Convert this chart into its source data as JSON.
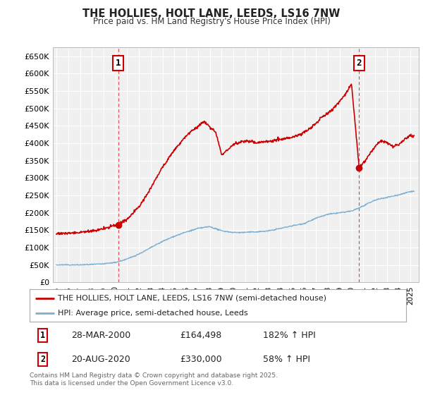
{
  "title": "THE HOLLIES, HOLT LANE, LEEDS, LS16 7NW",
  "subtitle": "Price paid vs. HM Land Registry's House Price Index (HPI)",
  "legend_label_red": "THE HOLLIES, HOLT LANE, LEEDS, LS16 7NW (semi-detached house)",
  "legend_label_blue": "HPI: Average price, semi-detached house, Leeds",
  "annotation1_date": "28-MAR-2000",
  "annotation1_price": "£164,498",
  "annotation1_hpi": "182% ↑ HPI",
  "annotation2_date": "20-AUG-2020",
  "annotation2_price": "£330,000",
  "annotation2_hpi": "58% ↑ HPI",
  "footer": "Contains HM Land Registry data © Crown copyright and database right 2025.\nThis data is licensed under the Open Government Licence v3.0.",
  "ylim": [
    0,
    675000
  ],
  "yticks": [
    0,
    50000,
    100000,
    150000,
    200000,
    250000,
    300000,
    350000,
    400000,
    450000,
    500000,
    550000,
    600000,
    650000
  ],
  "ytick_labels": [
    "£0",
    "£50K",
    "£100K",
    "£150K",
    "£200K",
    "£250K",
    "£300K",
    "£350K",
    "£400K",
    "£450K",
    "£500K",
    "£550K",
    "£600K",
    "£650K"
  ],
  "red_color": "#cc0000",
  "blue_color": "#7bafd4",
  "bg_color": "#ffffff",
  "plot_bg_color": "#f0f0f0",
  "grid_color": "#ffffff",
  "sale1_year": 2000.24,
  "sale2_year": 2020.64,
  "sale1_price": 164498,
  "sale2_price": 330000,
  "hpi_years_key": [
    1995,
    1996,
    1997,
    1998,
    1999,
    2000,
    2001,
    2002,
    2003,
    2004,
    2005,
    2006,
    2007,
    2008,
    2009,
    2010,
    2011,
    2012,
    2013,
    2014,
    2015,
    2016,
    2017,
    2018,
    2019,
    2020,
    2021,
    2022,
    2023,
    2024,
    2025
  ],
  "hpi_vals_key": [
    50000,
    50500,
    51000,
    52000,
    54000,
    58000,
    68000,
    82000,
    100000,
    118000,
    133000,
    145000,
    155000,
    160000,
    148000,
    143000,
    143000,
    145000,
    148000,
    155000,
    163000,
    170000,
    185000,
    196000,
    200000,
    205000,
    220000,
    237000,
    245000,
    252000,
    262000
  ],
  "red_years_key": [
    1995,
    1996,
    1997,
    1998,
    1999,
    2000.24,
    2001,
    2002,
    2003,
    2004,
    2005,
    2006,
    2007.5,
    2008.5,
    2009,
    2010,
    2011,
    2012,
    2013,
    2014,
    2015,
    2016,
    2017,
    2017.5,
    2018,
    2018.5,
    2019,
    2019.5,
    2020.0,
    2020.64,
    2020.9,
    2021.2,
    2021.5,
    2022,
    2022.5,
    2023,
    2023.5,
    2024,
    2024.5,
    2025
  ],
  "red_vals_key": [
    140000,
    141000,
    143000,
    146000,
    153000,
    164498,
    180000,
    215000,
    270000,
    330000,
    380000,
    420000,
    460000,
    430000,
    365000,
    395000,
    405000,
    400000,
    405000,
    410000,
    415000,
    430000,
    455000,
    475000,
    485000,
    500000,
    520000,
    540000,
    570000,
    330000,
    340000,
    350000,
    365000,
    390000,
    405000,
    400000,
    390000,
    395000,
    410000,
    420000
  ]
}
